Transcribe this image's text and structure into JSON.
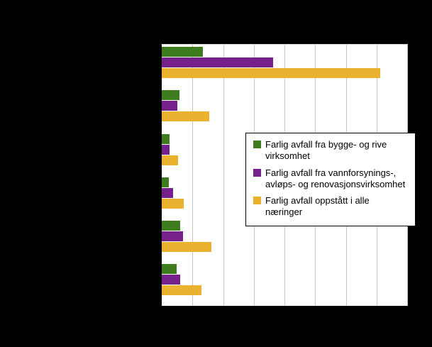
{
  "figure": {
    "background_color": "#000000",
    "plot_background_color": "#ffffff",
    "gridline_color": "#c6c6c6"
  },
  "chart_data": {
    "type": "bar",
    "orientation": "horizontal",
    "title": "",
    "xlabel": "",
    "ylabel": "",
    "categories": [
      "",
      "",
      "",
      "",
      "",
      ""
    ],
    "series": [
      {
        "name": "Farlig avfall fra bygge- og rive virksomhet",
        "color": "#3e7d1f",
        "values": [
          16.7,
          7.2,
          3.2,
          2.9,
          7.5,
          6.0
        ]
      },
      {
        "name": "Farlig avfall fra vannforsynings-, avløps- og renovasjonsvirksomhet",
        "color": "#76208c",
        "values": [
          45.4,
          6.3,
          3.2,
          4.6,
          8.6,
          7.5
        ]
      },
      {
        "name": "Farlig avfall oppstått i alle næringer",
        "color": "#eab22e",
        "values": [
          89.1,
          19.5,
          6.6,
          8.9,
          20.1,
          16.1
        ]
      }
    ],
    "xlim": [
      0,
      100
    ],
    "grid": true,
    "gridline_count": 8,
    "legend_position": "center-right"
  }
}
